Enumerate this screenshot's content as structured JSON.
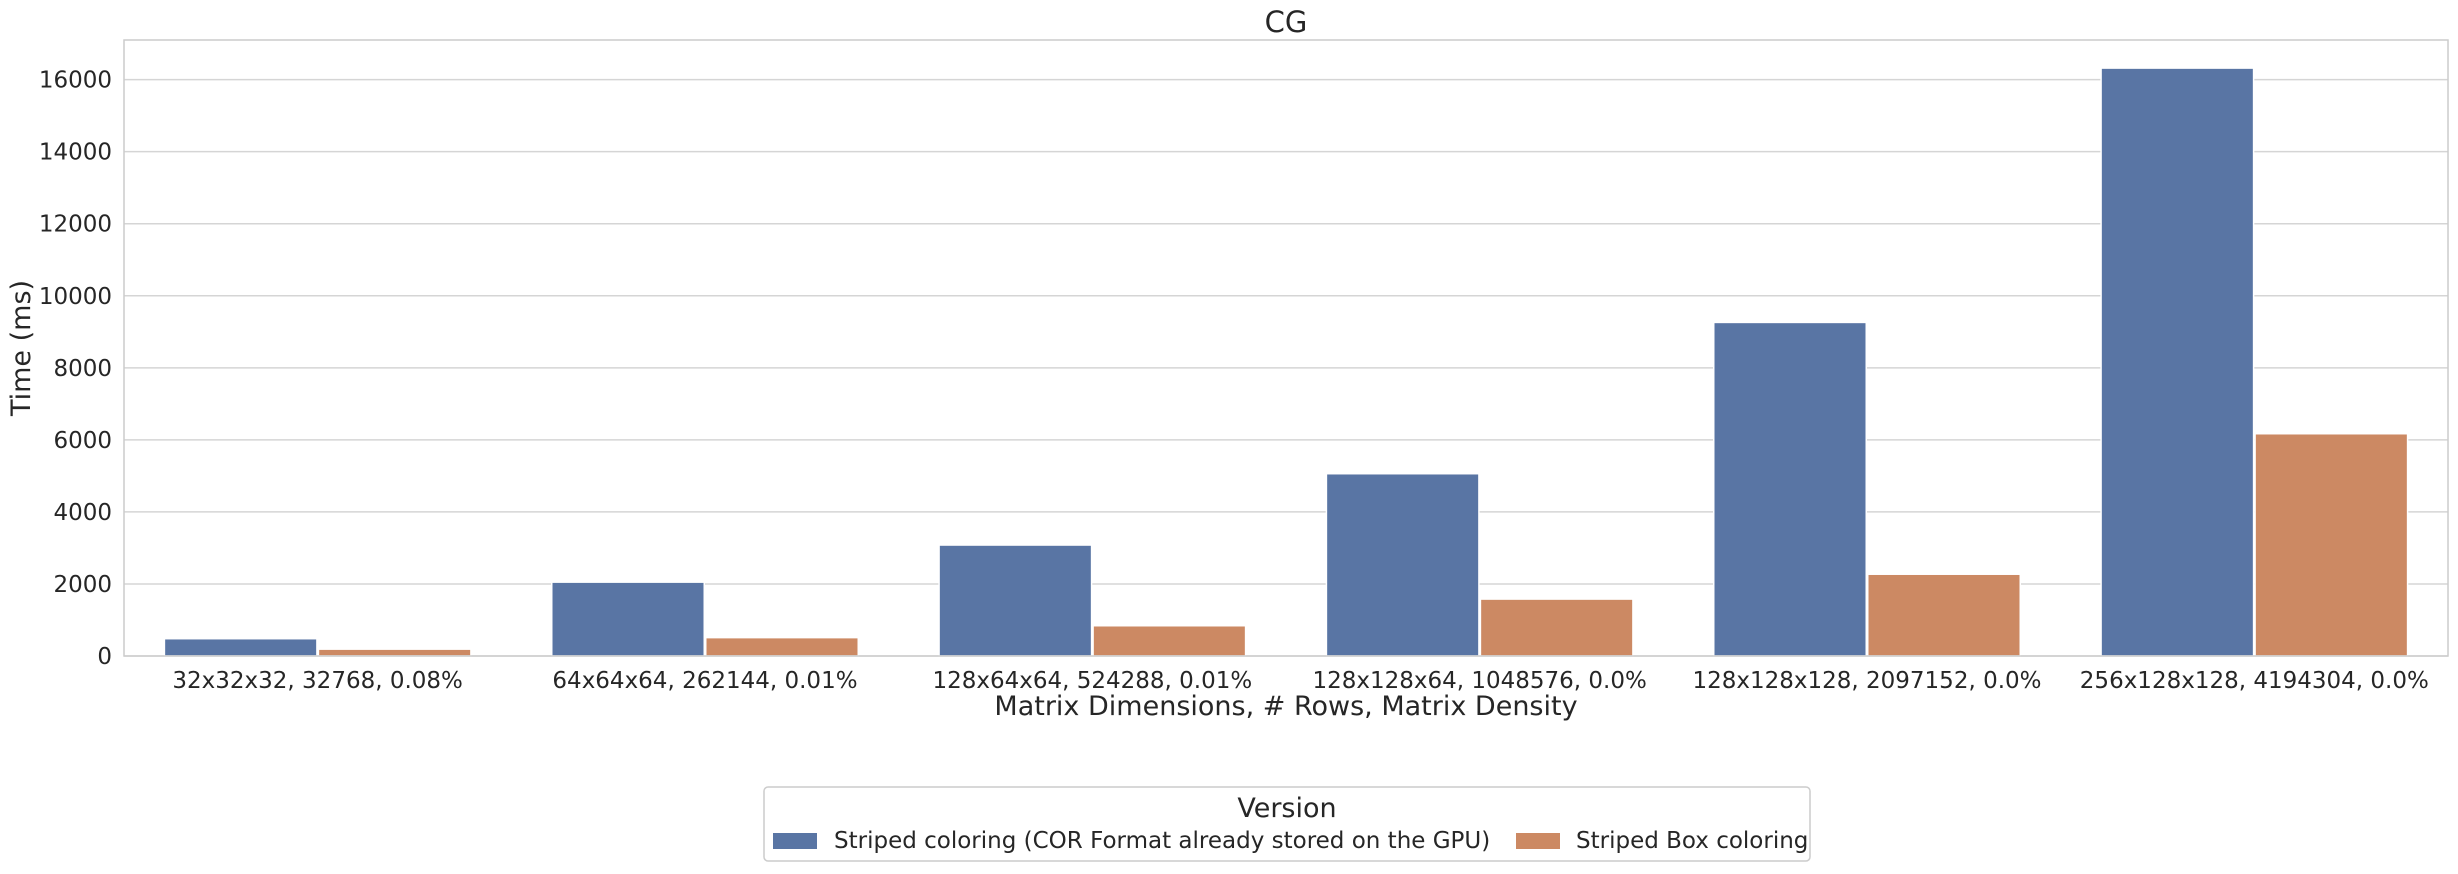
{
  "chart_data": {
    "type": "bar",
    "title": "CG",
    "xlabel": "Matrix Dimensions, # Rows, Matrix Density",
    "ylabel": "Time (ms)",
    "ylim": [
      0,
      17100
    ],
    "yticks": [
      0,
      2000,
      4000,
      6000,
      8000,
      10000,
      12000,
      14000,
      16000
    ],
    "ytick_labels": [
      "0",
      "2000",
      "4000",
      "6000",
      "8000",
      "10000",
      "12000",
      "14000",
      "16000"
    ],
    "categories": [
      "32x32x32, 32768, 0.08%",
      "64x64x64, 262144, 0.01%",
      "128x64x64, 524288, 0.01%",
      "128x128x64, 1048576, 0.0%",
      "128x128x128, 2097152, 0.0%",
      "256x128x128, 4194304, 0.0%"
    ],
    "series": [
      {
        "name": "Striped coloring (COR Format already stored on the GPU)",
        "color": "#5975a4",
        "values": [
          480,
          2050,
          3080,
          5060,
          9260,
          16320
        ]
      },
      {
        "name": "Striped Box coloring",
        "color": "#cc8963",
        "values": [
          190,
          510,
          840,
          1580,
          2270,
          6170
        ]
      }
    ],
    "grid": true,
    "grid_axis": "y",
    "legend": {
      "title": "Version",
      "placement": "bottom-center"
    }
  },
  "colors": {
    "grid": "#d5d5d5",
    "frame": "#cccccc",
    "text": "#262626"
  }
}
